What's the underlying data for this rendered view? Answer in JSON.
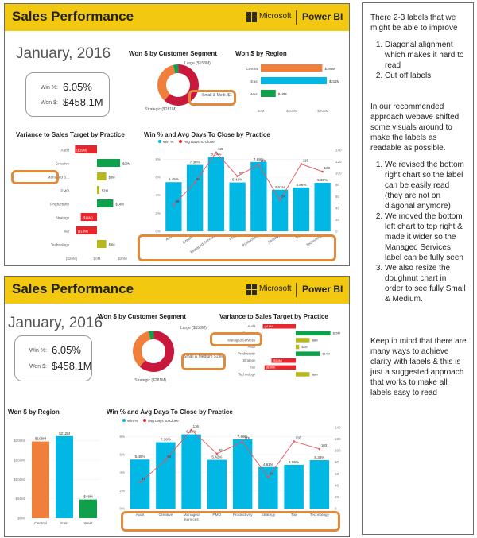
{
  "panel_a": {
    "title": "Sales Performance",
    "brand_microsoft": "Microsoft",
    "brand_powerbi": "Power BI",
    "month": "January, 2016",
    "kpi": {
      "win_label": "Win %:",
      "win_value": "6.05%",
      "won_label": "Won $:",
      "won_value": "$458.1M"
    },
    "chart_titles": {
      "segment": "Won $ by Customer Segment",
      "region": "Won $ by Region",
      "variance": "Variance to Sales Target by Practice",
      "winpct": "Win % and Avg Days To Close by Practice"
    }
  },
  "panel_b": {
    "title": "Sales Performance",
    "brand_microsoft": "Microsoft",
    "brand_powerbi": "Power BI",
    "month": "January, 2016",
    "kpi": {
      "win_label": "Win %:",
      "win_value": "6.05%",
      "won_label": "Won $:",
      "won_value": "$458.1M"
    },
    "chart_titles": {
      "segment": "Won $ by Customer Segment",
      "variance": "Variance to Sales Target by Practice",
      "region": "Won $ by Region",
      "winpct": "Win % and Avg Days To Close by Practice"
    }
  },
  "notes": {
    "intro": "There 2-3 labels that we might be able to improve",
    "issues": [
      "Diagonal alignment which makes it hard to read",
      "Cut off labels"
    ],
    "approach": "In our recommended approach webave shifted some visuals around to make the labels as readable as possible.",
    "fixes": [
      "We revised the bottom right chart so the label can be easily read (they are not on diagonal anymore)",
      "We moved the bottom left chart to top right & made it wider so the Managed Services label can be fully seen",
      "We also resize the doughnut chart in order to see fully Small & Medium."
    ],
    "closing": "Keep in mind that there are many ways to achieve clarity with labels & this is just a suggested approach that works to make all labels easy to read"
  },
  "colors": {
    "yellow": "#f2c811",
    "blue": "#01b8e4",
    "red": "#e8252b",
    "green": "#0ea04b",
    "olive": "#b5b91b",
    "orange": "#f07f3c",
    "crimson": "#c8193c",
    "highlight": "#e08a3a",
    "line": "#e8545c"
  },
  "chart_data": [
    {
      "type": "pie",
      "title": "Won $ by Customer Segment",
      "categories": [
        "Strategic",
        "Large",
        "Small & Medi"
      ],
      "values": [
        281,
        158,
        19
      ],
      "labels": [
        "Strategic ($281M)",
        "Large ($158M)",
        "Small & Medi. $19M"
      ],
      "labels_panel_b": [
        "Strategic ($281M)",
        "Large ($158M)",
        "Small & Medium $19M"
      ]
    },
    {
      "type": "bar",
      "orientation": "horizontal",
      "title": "Won $ by Region",
      "categories": [
        "Central",
        "East",
        "West"
      ],
      "values": [
        198,
        212,
        48
      ],
      "value_labels": [
        "$198M",
        "$212M",
        "$48M"
      ],
      "ticks": [
        "$0M",
        "$100M",
        "$200M"
      ],
      "bar_colors": [
        "#f07f3c",
        "#01b8e4",
        "#0ea04b"
      ]
    },
    {
      "type": "bar",
      "orientation": "horizontal-diverging",
      "title": "Variance to Sales Target by Practice",
      "categories": [
        "Audit",
        "Creative",
        "Managed S...",
        "PMO",
        "Productivity",
        "Strategy",
        "Tax",
        "Technology"
      ],
      "categories_panel_b": [
        "Audit",
        "Creative",
        "Managed Services",
        "PMO",
        "Productivity",
        "Strategy",
        "Tax",
        "Technology"
      ],
      "values": [
        -19,
        20,
        8,
        2,
        14,
        -14,
        -18,
        8
      ],
      "value_labels": [
        "($19M)",
        "$20M",
        "$8M",
        "$2M",
        "$14M",
        "($14M)",
        "($18M)",
        "$8M"
      ],
      "ticks": [
        "($20M)",
        "$0M",
        "$20M"
      ],
      "bar_colors": [
        "#e8252b",
        "#0ea04b",
        "#b5b91b",
        "#b5b91b",
        "#0ea04b",
        "#e8252b",
        "#e8252b",
        "#b5b91b"
      ]
    },
    {
      "type": "bar",
      "title": "Win % and Avg Days To Close by Practice",
      "legend": [
        "Win %",
        "Avg Days To Close"
      ],
      "categories": [
        "Audit",
        "Creative",
        "Managed Services",
        "PMO",
        "Productivity",
        "Strategy",
        "Tax",
        "Technology"
      ],
      "series": [
        {
          "name": "Win %",
          "values": [
            5.45,
            7.36,
            8.24,
            5.42,
            7.69,
            4.61,
            4.86,
            5.38
          ],
          "value_labels": [
            "5.45%",
            "7.36%",
            "8.24%",
            "5.42%",
            "7.69%",
            "4.61%",
            "4.86%",
            "5.38%"
          ]
        },
        {
          "name": "Avg Days To Close",
          "values": [
            45,
            84,
            136,
            95,
            115,
            54,
            116,
            103
          ],
          "value_labels": [
            "45",
            "84",
            "136",
            "95",
            "115",
            "54",
            "116",
            "103"
          ]
        }
      ],
      "y_left_ticks": [
        "0%",
        "2%",
        "4%",
        "6%",
        "8%"
      ],
      "y_right_ticks": [
        "0",
        "20",
        "40",
        "60",
        "80",
        "100",
        "120",
        "140"
      ],
      "ylim_left": [
        0,
        9
      ],
      "ylim_right": [
        0,
        140
      ]
    },
    {
      "type": "bar",
      "title": "Won $ by Region",
      "categories": [
        "Central",
        "East",
        "West"
      ],
      "values": [
        198,
        212,
        48
      ],
      "value_labels": [
        "$198M",
        "$212M",
        "$48M"
      ],
      "y_ticks": [
        "$0M",
        "$50M",
        "$100M",
        "$150M",
        "$200M"
      ],
      "ylim": [
        0,
        230
      ],
      "bar_colors": [
        "#f07f3c",
        "#01b8e4",
        "#0ea04b"
      ]
    }
  ]
}
